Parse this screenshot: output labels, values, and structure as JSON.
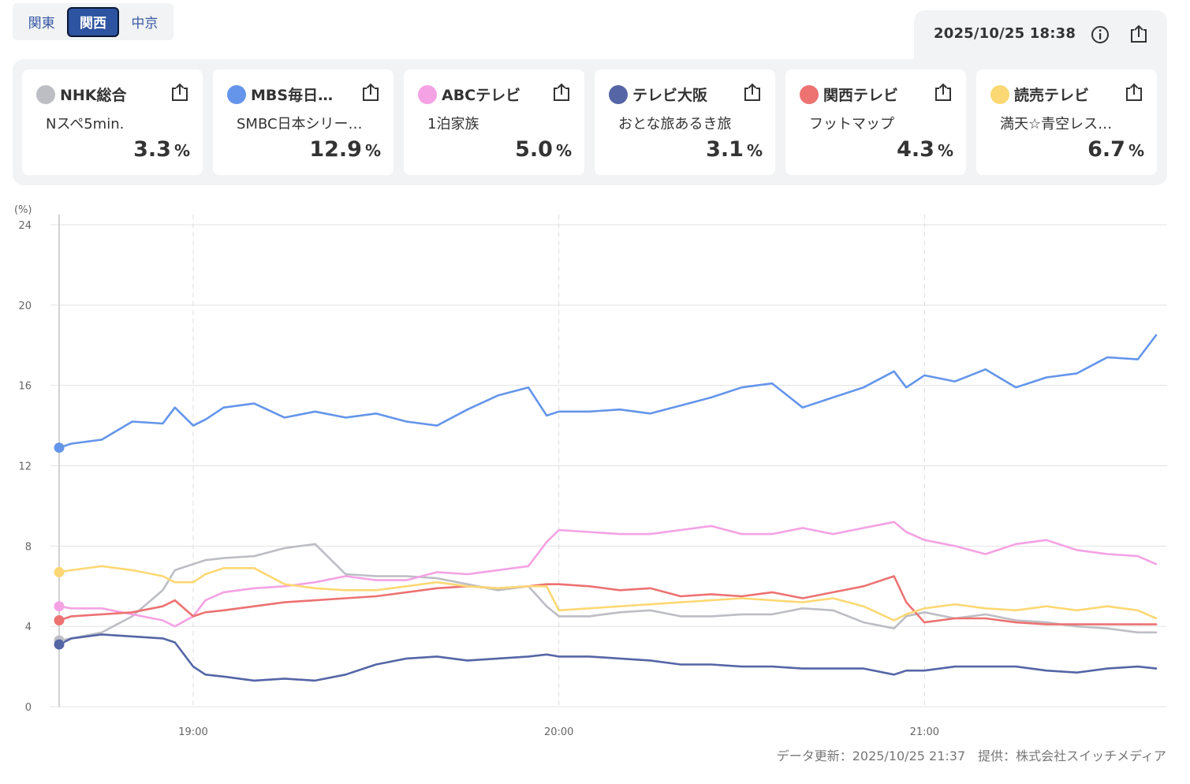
{
  "regions": [
    "関東",
    "関西",
    "中京"
  ],
  "active_region": "関西",
  "datetime": "2025/10/25 18:38",
  "icons": {
    "info": "info-icon",
    "share": "share-icon"
  },
  "unit_label": "%",
  "channels": [
    {
      "name": "NHK総合",
      "program": "Nスペ5min.",
      "rating": "3.3",
      "color": "#bcbec4"
    },
    {
      "name": "MBS毎日…",
      "program": "SMBC日本シリー…",
      "rating": "12.9",
      "color": "#6495ea"
    },
    {
      "name": "ABCテレビ",
      "program": "1泊家族",
      "rating": "5.0",
      "color": "#f4a2e4"
    },
    {
      "name": "テレビ大阪",
      "program": "おとな旅あるき旅",
      "rating": "3.1",
      "color": "#5565a6"
    },
    {
      "name": "関西テレビ",
      "program": "フットマップ",
      "rating": "4.3",
      "color": "#ed7272"
    },
    {
      "name": "読売テレビ",
      "program": "満天☆青空レス…",
      "rating": "6.7",
      "color": "#fcd874"
    }
  ],
  "chart_data": {
    "type": "line",
    "yunit": "(%)",
    "ylim": [
      0,
      24
    ],
    "yticks": [
      "0",
      "4",
      "8",
      "12",
      "16",
      "20",
      "24"
    ],
    "xlim": [
      "18:38",
      "21:38"
    ],
    "xticks": [
      "19:00",
      "20:00",
      "21:00"
    ],
    "x": [
      "18:38",
      "18:40",
      "18:45",
      "18:50",
      "18:55",
      "18:57",
      "19:00",
      "19:02",
      "19:05",
      "19:10",
      "19:15",
      "19:20",
      "19:25",
      "19:30",
      "19:35",
      "19:40",
      "19:45",
      "19:50",
      "19:55",
      "19:58",
      "20:00",
      "20:05",
      "20:10",
      "20:15",
      "20:20",
      "20:25",
      "20:30",
      "20:35",
      "20:40",
      "20:45",
      "20:50",
      "20:55",
      "20:57",
      "21:00",
      "21:05",
      "21:10",
      "21:15",
      "21:20",
      "21:25",
      "21:30",
      "21:35",
      "21:38"
    ],
    "grid": true,
    "legend": "top-cards",
    "series": [
      {
        "name": "NHK総合",
        "color": "#bcbec4",
        "values": [
          3.3,
          3.4,
          3.7,
          4.5,
          5.8,
          6.8,
          7.1,
          7.3,
          7.4,
          7.5,
          7.9,
          8.1,
          6.6,
          6.5,
          6.5,
          6.4,
          6.1,
          5.8,
          6.0,
          5.0,
          4.5,
          4.5,
          4.7,
          4.8,
          4.5,
          4.5,
          4.6,
          4.6,
          4.9,
          4.8,
          4.2,
          3.9,
          4.5,
          4.7,
          4.4,
          4.6,
          4.3,
          4.2,
          4.0,
          3.9,
          3.7,
          3.7
        ]
      },
      {
        "name": "MBS毎日…",
        "color": "#6495ea",
        "values": [
          12.9,
          13.1,
          13.3,
          14.2,
          14.1,
          14.9,
          14.0,
          14.3,
          14.9,
          15.1,
          14.4,
          14.7,
          14.4,
          14.6,
          14.2,
          14.0,
          14.8,
          15.5,
          15.9,
          14.5,
          14.7,
          14.7,
          14.8,
          14.6,
          15.0,
          15.4,
          15.9,
          16.1,
          14.9,
          15.4,
          15.9,
          16.7,
          15.9,
          16.5,
          16.2,
          16.8,
          15.9,
          16.4,
          16.6,
          17.4,
          17.3,
          18.5
        ]
      },
      {
        "name": "ABCテレビ",
        "color": "#f4a2e4",
        "values": [
          5.0,
          4.9,
          4.9,
          4.6,
          4.3,
          4.0,
          4.5,
          5.3,
          5.7,
          5.9,
          6.0,
          6.2,
          6.5,
          6.3,
          6.3,
          6.7,
          6.6,
          6.8,
          7.0,
          8.2,
          8.8,
          8.7,
          8.6,
          8.6,
          8.8,
          9.0,
          8.6,
          8.6,
          8.9,
          8.6,
          8.9,
          9.2,
          8.7,
          8.3,
          8.0,
          7.6,
          8.1,
          8.3,
          7.8,
          7.6,
          7.5,
          7.1
        ]
      },
      {
        "name": "テレビ大阪",
        "color": "#5565a6",
        "values": [
          3.1,
          3.4,
          3.6,
          3.5,
          3.4,
          3.2,
          2.0,
          1.6,
          1.5,
          1.3,
          1.4,
          1.3,
          1.6,
          2.1,
          2.4,
          2.5,
          2.3,
          2.4,
          2.5,
          2.6,
          2.5,
          2.5,
          2.4,
          2.3,
          2.1,
          2.1,
          2.0,
          2.0,
          1.9,
          1.9,
          1.9,
          1.6,
          1.8,
          1.8,
          2.0,
          2.0,
          2.0,
          1.8,
          1.7,
          1.9,
          2.0,
          1.9
        ]
      },
      {
        "name": "関西テレビ",
        "color": "#ed7272",
        "values": [
          4.3,
          4.5,
          4.6,
          4.7,
          5.0,
          5.3,
          4.5,
          4.7,
          4.8,
          5.0,
          5.2,
          5.3,
          5.4,
          5.5,
          5.7,
          5.9,
          6.0,
          5.9,
          6.0,
          6.1,
          6.1,
          6.0,
          5.8,
          5.9,
          5.5,
          5.6,
          5.5,
          5.7,
          5.4,
          5.7,
          6.0,
          6.5,
          5.2,
          4.2,
          4.4,
          4.4,
          4.2,
          4.1,
          4.1,
          4.1,
          4.1,
          4.1
        ]
      },
      {
        "name": "読売テレビ",
        "color": "#fcd874",
        "values": [
          6.7,
          6.8,
          7.0,
          6.8,
          6.5,
          6.2,
          6.2,
          6.6,
          6.9,
          6.9,
          6.1,
          5.9,
          5.8,
          5.8,
          6.0,
          6.2,
          6.0,
          5.9,
          6.0,
          6.0,
          4.8,
          4.9,
          5.0,
          5.1,
          5.2,
          5.3,
          5.4,
          5.3,
          5.2,
          5.4,
          5.0,
          4.3,
          4.6,
          4.9,
          5.1,
          4.9,
          4.8,
          5.0,
          4.8,
          5.0,
          4.8,
          4.4
        ]
      }
    ]
  },
  "footer": "データ更新：2025/10/25 21:37　提供：株式会社スイッチメディア"
}
